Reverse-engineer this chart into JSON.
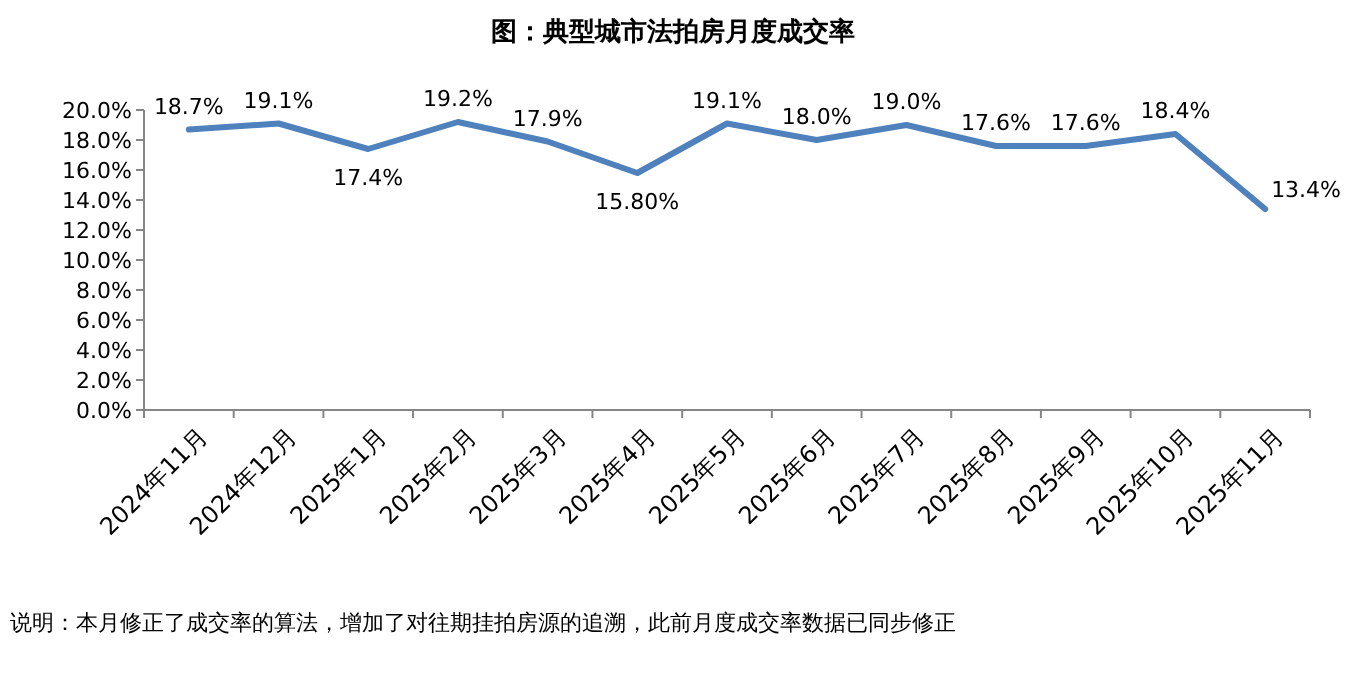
{
  "chart_data": {
    "type": "line",
    "title": "图：典型城市法拍房月度成交率",
    "categories": [
      "2024年11月",
      "2024年12月",
      "2025年1月",
      "2025年2月",
      "2025年3月",
      "2025年4月",
      "2025年5月",
      "2025年6月",
      "2025年7月",
      "2025年8月",
      "2025年9月",
      "2025年10月",
      "2025年11月"
    ],
    "series": [
      {
        "color": "#4f81bd",
        "values": [
          18.7,
          19.1,
          17.4,
          19.2,
          17.9,
          15.8,
          19.1,
          18.0,
          19.0,
          17.6,
          17.6,
          18.4,
          13.4
        ],
        "value_labels": [
          "18.7%",
          "19.1%",
          "17.4%",
          "19.2%",
          "17.9%",
          "15.80%",
          "19.1%",
          "18.0%",
          "19.0%",
          "17.6%",
          "17.6%",
          "18.4%",
          "13.4%"
        ]
      }
    ],
    "ylim": [
      0,
      20
    ],
    "yticks": [
      {
        "value": 0,
        "label": "0.0%"
      },
      {
        "value": 2,
        "label": "2.0%"
      },
      {
        "value": 4,
        "label": "4.0%"
      },
      {
        "value": 6,
        "label": "6.0%"
      },
      {
        "value": 8,
        "label": "8.0%"
      },
      {
        "value": 10,
        "label": "10.0%"
      },
      {
        "value": 12,
        "label": "12.0%"
      },
      {
        "value": 14,
        "label": "14.0%"
      },
      {
        "value": 16,
        "label": "16.0%"
      },
      {
        "value": 18,
        "label": "18.0%"
      },
      {
        "value": 20,
        "label": "20.0%"
      }
    ],
    "grid": false,
    "marker": "none",
    "line_style": "solid",
    "annotations": [
      "说明：本月修正了成交率的算法，增加了对往期挂拍房源的追溯，此前月度成交率数据已同步修正"
    ]
  }
}
